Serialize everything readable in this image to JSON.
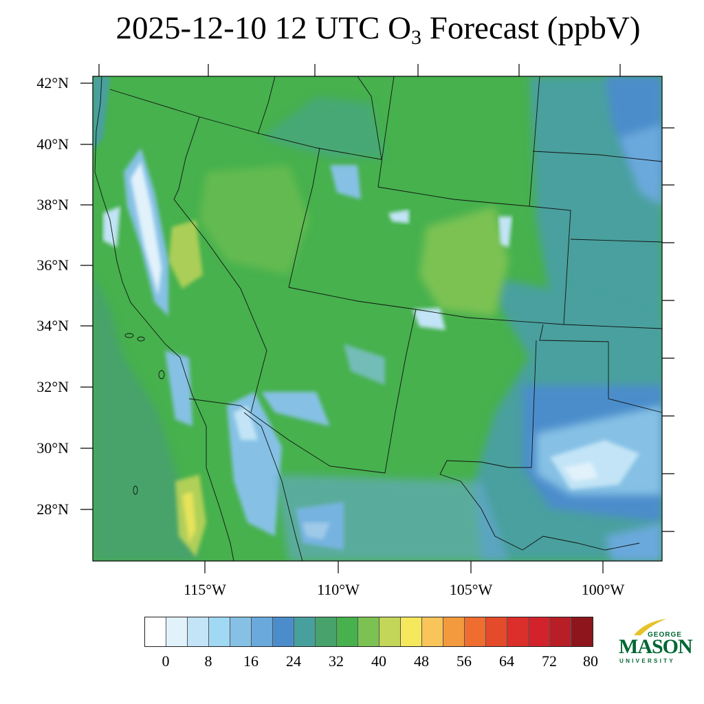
{
  "title": {
    "main": "2025-12-10 12 UTC O",
    "subscript": "3",
    "rest": " Forecast (ppbV)"
  },
  "lat_ticks": [
    "42°N",
    "40°N",
    "38°N",
    "36°N",
    "34°N",
    "32°N",
    "30°N",
    "28°N"
  ],
  "lon_ticks": [
    "115°W",
    "110°W",
    "105°W",
    "100°W"
  ],
  "colorbar": {
    "colors": [
      "#ffffff",
      "#e2f2fb",
      "#c2e4f6",
      "#a1d8f3",
      "#86c1e5",
      "#6aa9dc",
      "#4b8dcb",
      "#48a09e",
      "#47a36b",
      "#46b14d",
      "#7bc252",
      "#c4d65a",
      "#f5e85c",
      "#f9c45a",
      "#f49a3e",
      "#ee6d2f",
      "#e34b2b",
      "#dc2e2a",
      "#d2232c",
      "#b71e26",
      "#8c161c"
    ],
    "labels": [
      "0",
      "8",
      "16",
      "24",
      "32",
      "40",
      "48",
      "56",
      "64",
      "72",
      "80"
    ]
  },
  "logo": {
    "top": "GEORGE",
    "main": "MASON",
    "bottom": "UNIVERSITY",
    "color": "#006633"
  }
}
